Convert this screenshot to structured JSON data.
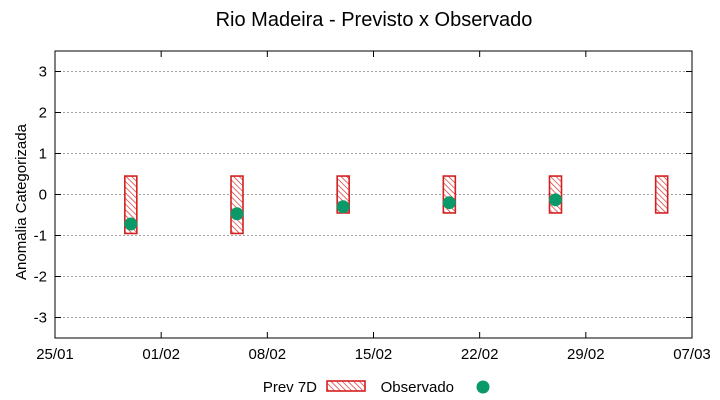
{
  "chart_data": {
    "type": "bar",
    "title": "Rio Madeira - Previsto x Observado",
    "ylabel": "Anomalia Categorizada",
    "xlabel": "",
    "ylim": [
      -3.5,
      3.5
    ],
    "y_ticks": [
      3,
      2,
      1,
      0,
      -1,
      -2,
      -3
    ],
    "y_tick_labels": [
      "3",
      "2",
      "1",
      "0",
      "-1",
      "-2",
      "-3"
    ],
    "x_range_days": [
      0,
      42
    ],
    "x_ticks": [
      0,
      7,
      14,
      21,
      28,
      35,
      42
    ],
    "x_tick_labels": [
      "25/01",
      "01/02",
      "08/02",
      "15/02",
      "22/02",
      "29/02",
      "07/03"
    ],
    "grid": true,
    "series": [
      {
        "name": "Prev 7D",
        "kind": "range-bar",
        "color": "#d42020",
        "x_days": [
          5,
          12,
          19,
          26,
          33,
          40
        ],
        "low": [
          -0.95,
          -0.95,
          -0.45,
          -0.45,
          -0.45,
          -0.45
        ],
        "high": [
          0.45,
          0.45,
          0.45,
          0.45,
          0.45,
          0.45
        ]
      },
      {
        "name": "Observado",
        "kind": "point",
        "color": "#0a9a6a",
        "x_days": [
          5,
          12,
          19,
          26,
          33
        ],
        "values": [
          -0.72,
          -0.47,
          -0.3,
          -0.2,
          -0.13
        ]
      }
    ],
    "legend": {
      "position": "bottom-center",
      "items": [
        "Prev 7D",
        "Observado"
      ]
    }
  }
}
